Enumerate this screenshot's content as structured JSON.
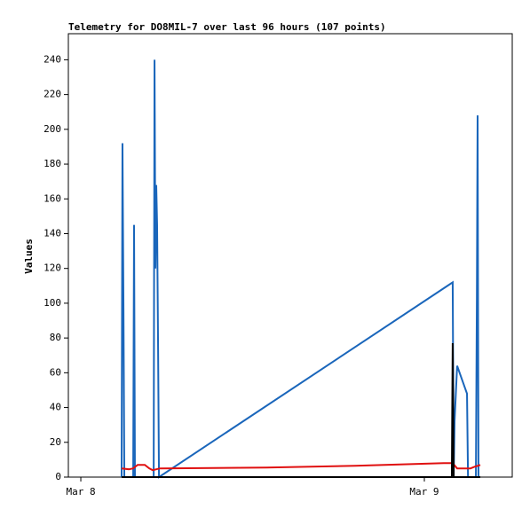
{
  "chart_data": {
    "type": "line",
    "title": "Telemetry for DO8MIL-7 over last 96 hours (107 points)",
    "y_label": "Values",
    "xlim": [
      -0.87,
      30.14
    ],
    "xticks": [
      {
        "value": 0,
        "label": "Mar 8"
      },
      {
        "value": 24,
        "label": "Mar 9"
      }
    ],
    "ylim": [
      0,
      255
    ],
    "yticks": [
      0,
      20,
      40,
      60,
      80,
      100,
      120,
      140,
      160,
      180,
      200,
      220,
      240
    ],
    "grid": false,
    "series": [
      {
        "color": "#1a66bb",
        "x": [
          2.85,
          2.91,
          2.98,
          3.04,
          3.66,
          3.72,
          3.78,
          5.09,
          5.15,
          5.21,
          5.27,
          5.33,
          5.4,
          5.46,
          25.98,
          26.05,
          26.11,
          26.29,
          26.98,
          27.05,
          27.6,
          27.67,
          27.72,
          27.78
        ],
        "values": [
          0,
          192,
          97,
          0,
          0,
          145,
          0,
          0,
          240,
          120,
          168,
          145,
          73,
          0,
          112,
          0,
          32,
          64,
          48,
          0,
          0,
          104,
          208,
          0
        ]
      },
      {
        "color": "#e01010",
        "x": [
          2.85,
          3.35,
          3.66,
          3.97,
          4.47,
          4.78,
          5.02,
          5.52,
          12.96,
          19.16,
          25.36,
          25.98,
          26.29,
          27.22,
          27.53,
          27.91
        ],
        "values": [
          5,
          4.5,
          5,
          7,
          7,
          5,
          4,
          5,
          5.5,
          6.5,
          8,
          8,
          5,
          5,
          6,
          7
        ]
      },
      {
        "color": "#000000",
        "x": [
          2.85,
          25.92,
          25.98,
          26.05,
          27.91
        ],
        "values": [
          0,
          0,
          77,
          0,
          0
        ]
      }
    ]
  }
}
